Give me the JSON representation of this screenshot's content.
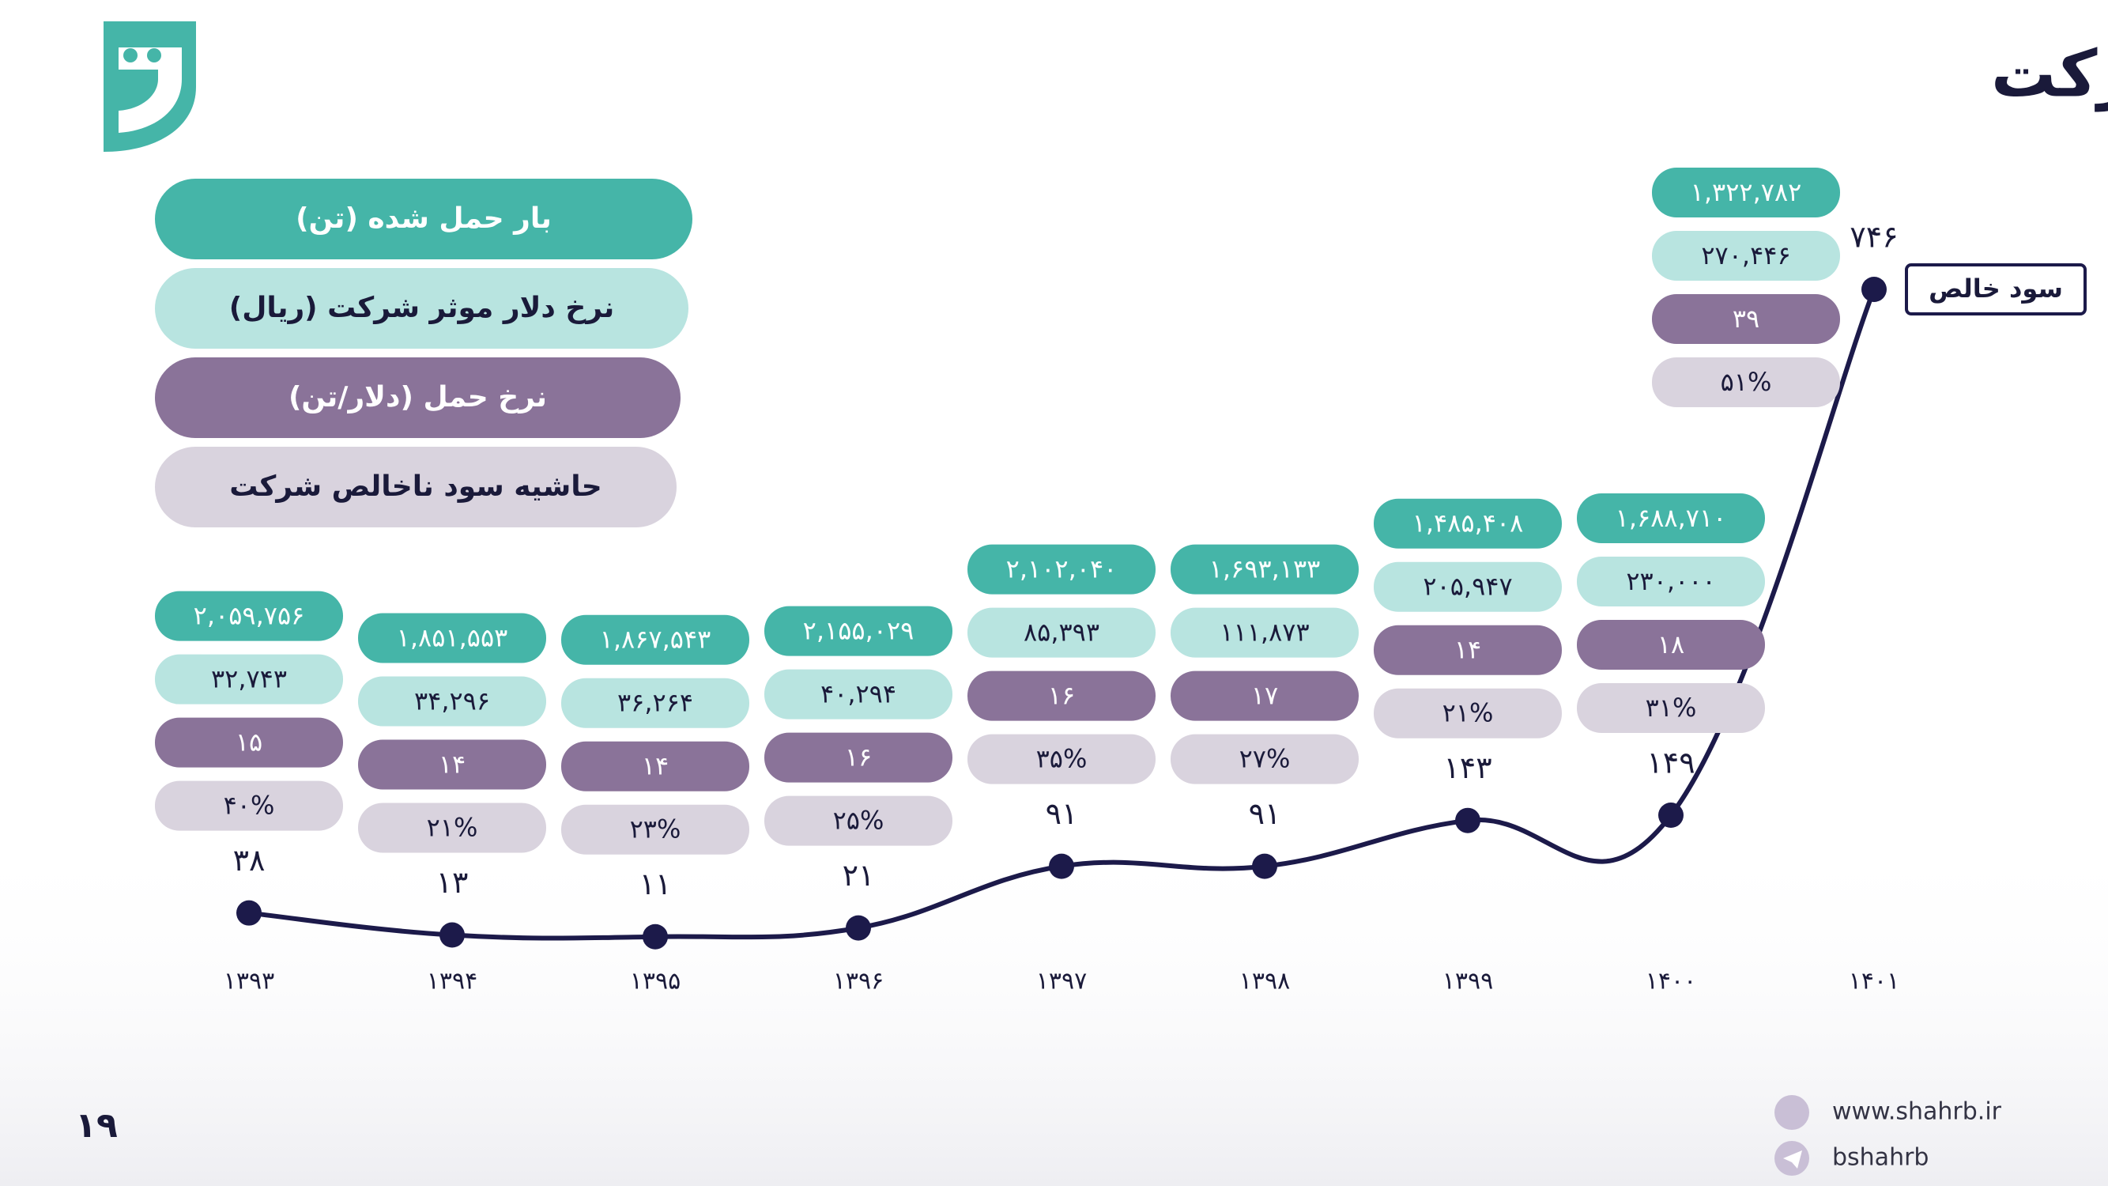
{
  "header": {
    "title": "خلاصه وضعیت شرکت"
  },
  "chart_data": {
    "type": "line",
    "categories": [
      "۱۳۹۳",
      "۱۳۹۴",
      "۱۳۹۵",
      "۱۳۹۶",
      "۱۳۹۷",
      "۱۳۹۸",
      "۱۳۹۹",
      "۱۴۰۰",
      "۱۴۰۱"
    ],
    "series": [
      {
        "name": "سود خالص",
        "color": "#1c1a4a",
        "values": [
          38,
          13,
          11,
          21,
          91,
          91,
          143,
          149,
          746
        ],
        "value_labels": [
          "۳۸",
          "۱۳",
          "۱۱",
          "۲۱",
          "۹۱",
          "۹۱",
          "۱۴۳",
          "۱۴۹",
          "۷۴۶"
        ]
      }
    ],
    "table": [
      {
        "name": "بار حمل شده (تن)",
        "color": "#45b5a8",
        "text_color": "#ffffff",
        "values": [
          "۲,۰۵۹,۷۵۶",
          "۱,۸۵۱,۵۵۳",
          "۱,۸۶۷,۵۴۳",
          "۲,۱۵۵,۰۲۹",
          "۲,۱۰۲,۰۴۰",
          "۱,۶۹۳,۱۳۳",
          "۱,۴۸۵,۴۰۸",
          "۱,۶۸۸,۷۱۰",
          "۱,۳۲۲,۷۸۲"
        ]
      },
      {
        "name": "نرخ دلار موثر شرکت (ریال)",
        "color": "#b8e4e0",
        "text_color": "#1a1a3a",
        "values": [
          "۳۲,۷۴۳",
          "۳۴,۲۹۶",
          "۳۶,۲۶۴",
          "۴۰,۲۹۴",
          "۸۵,۳۹۳",
          "۱۱۱,۸۷۳",
          "۲۰۵,۹۴۷",
          "۲۳۰,۰۰۰",
          "۲۷۰,۴۴۶"
        ]
      },
      {
        "name": "نرخ حمل (دلار/تن)",
        "color": "#8a7399",
        "text_color": "#ffffff",
        "values": [
          "۱۵",
          "۱۴",
          "۱۴",
          "۱۶",
          "۱۶",
          "۱۷",
          "۱۴",
          "۱۸",
          "۳۹"
        ]
      },
      {
        "name": "حاشیه سود ناخالص شرکت",
        "color": "#d9d3de",
        "text_color": "#1a1a3a",
        "values": [
          "۴۰%",
          "۲۱%",
          "۲۳%",
          "۲۵%",
          "۳۵%",
          "۲۷%",
          "۲۱%",
          "۳۱%",
          "۵۱%"
        ]
      }
    ]
  },
  "footer": {
    "page": "۱۹",
    "website": "www.shahrb.ir",
    "handle": "bshahrb"
  }
}
